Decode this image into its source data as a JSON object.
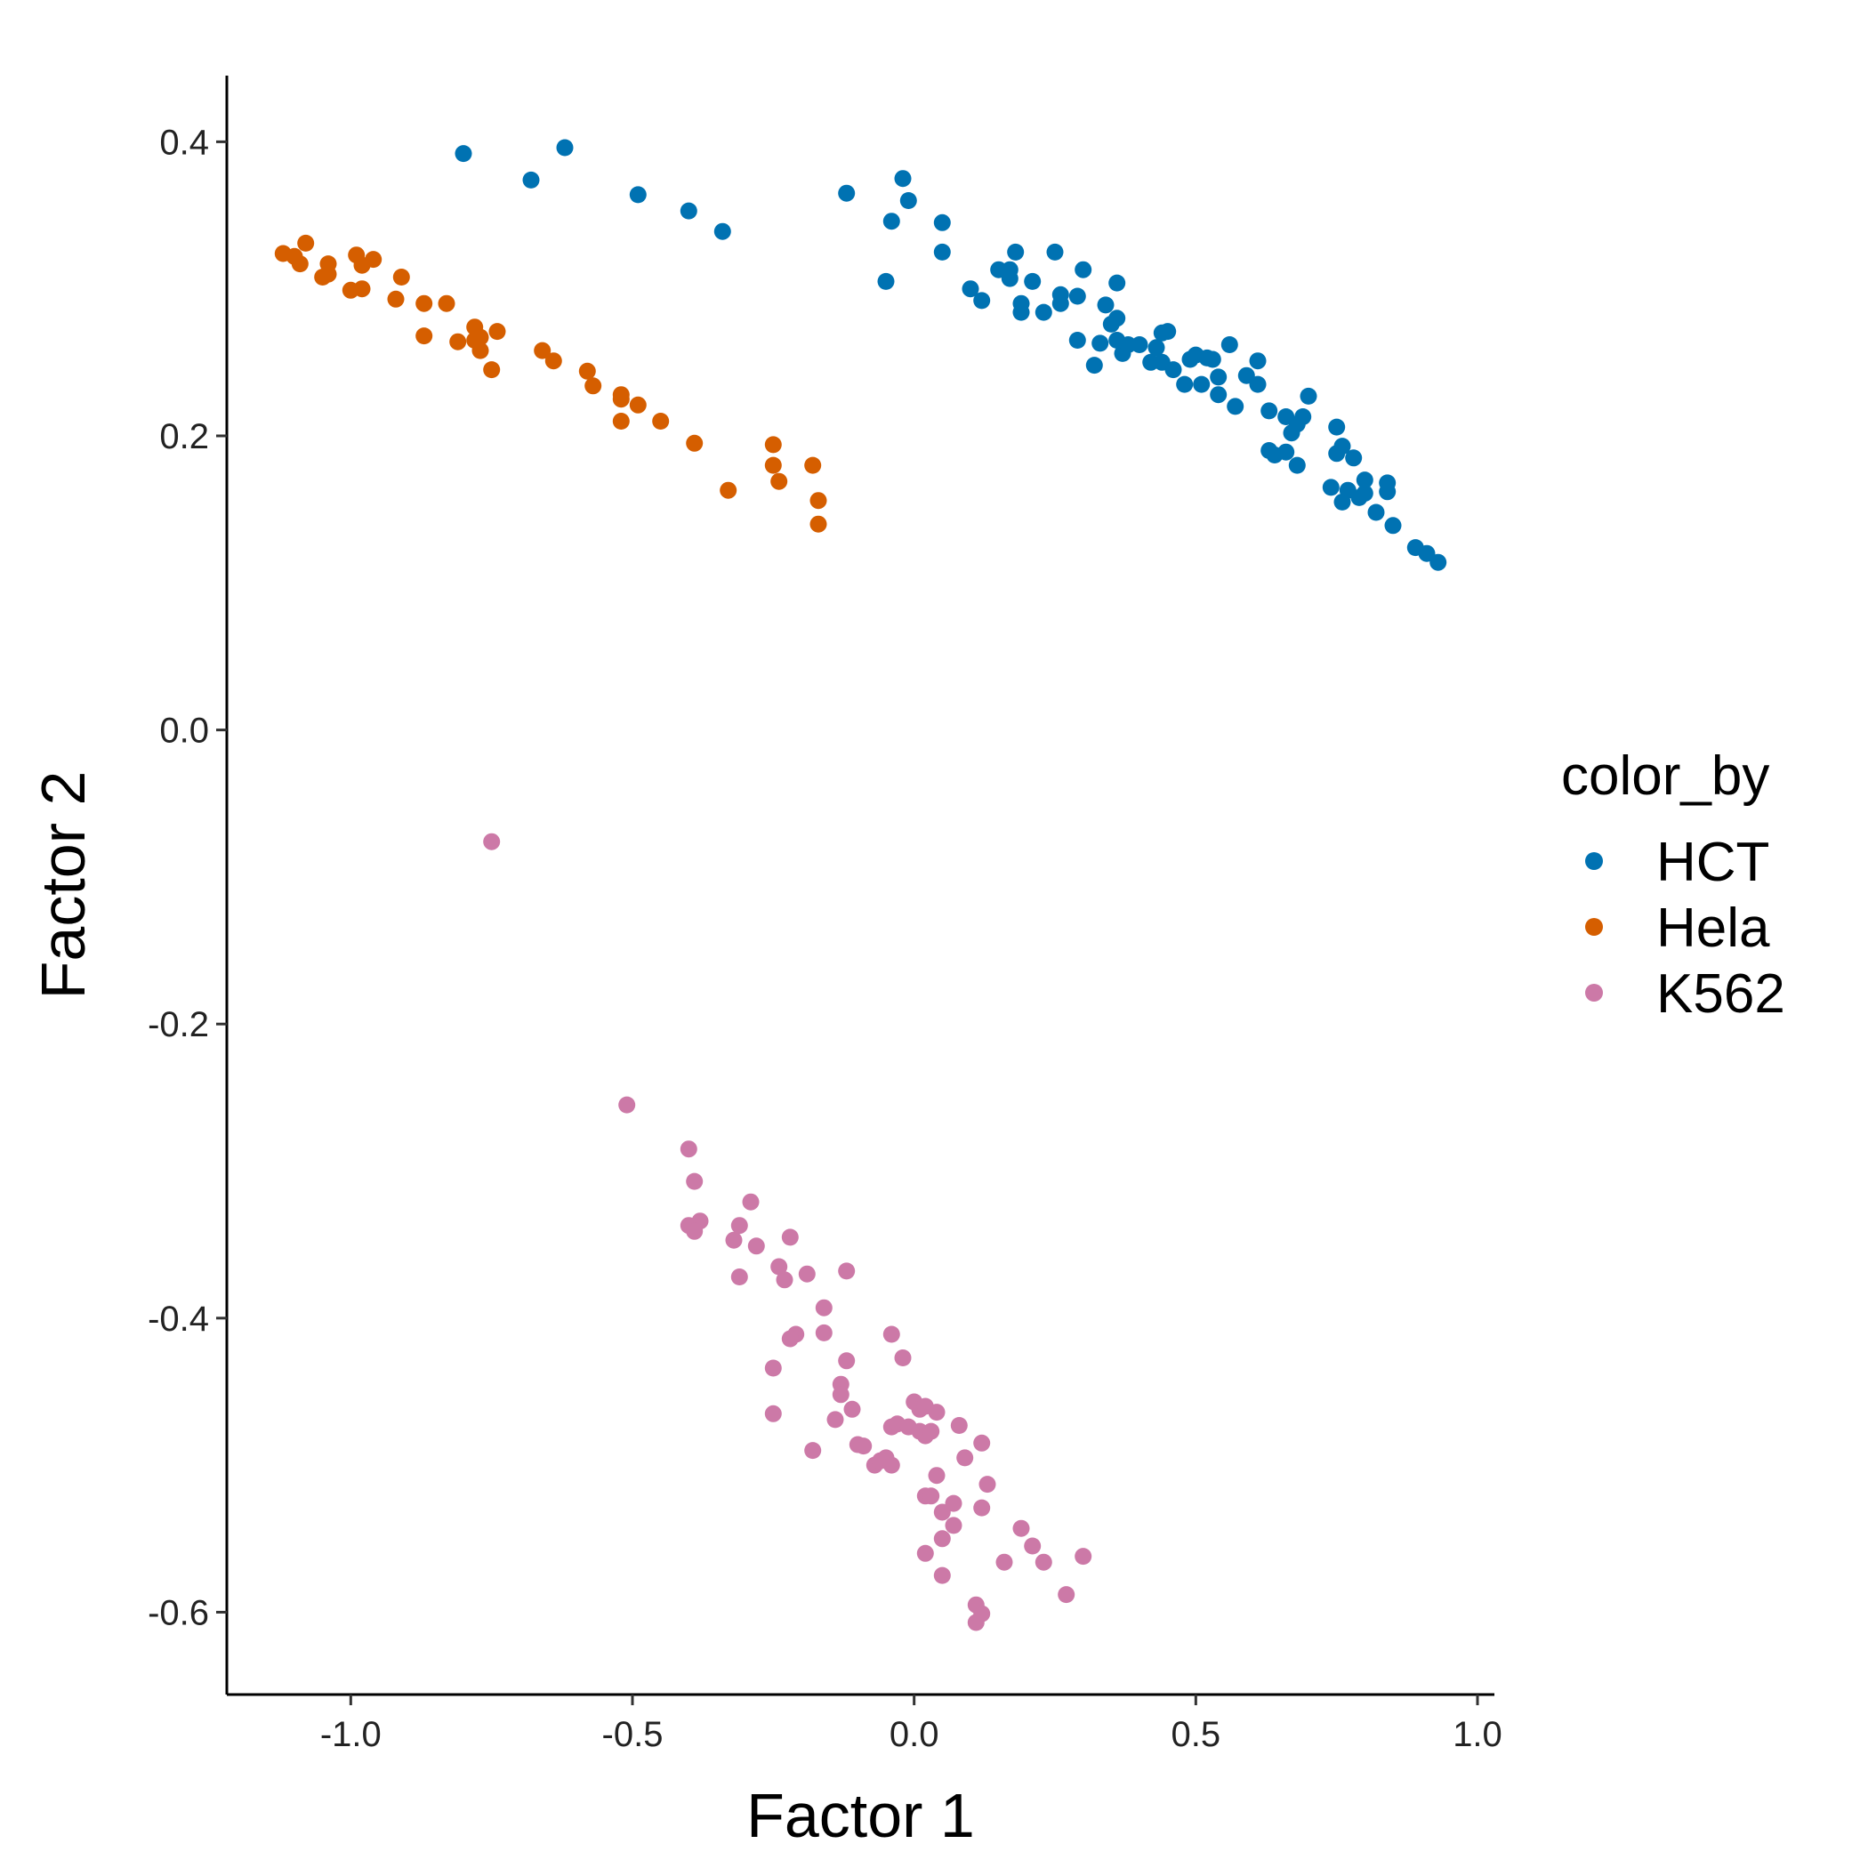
{
  "chart_data": {
    "type": "scatter",
    "xlabel": "Factor 1",
    "ylabel": "Factor 2",
    "xlim": [
      -1.22,
      1.03
    ],
    "ylim": [
      -0.656,
      0.445
    ],
    "x_ticks": [
      -1.0,
      -0.5,
      0.0,
      0.5,
      1.0
    ],
    "x_tick_labels": [
      "-1.0",
      "-0.5",
      "0.0",
      "0.5",
      "1.0"
    ],
    "y_ticks": [
      0.4,
      0.2,
      0.0,
      -0.2,
      -0.4,
      -0.6
    ],
    "y_tick_labels": [
      "0.4",
      "0.2",
      "0.0",
      "-0.2",
      "-0.4",
      "-0.6"
    ],
    "grid": false,
    "legend": {
      "title": "color_by",
      "position": "right"
    },
    "series": [
      {
        "name": "HCT",
        "color": "#0072B2",
        "points": [
          [
            -0.8,
            0.392
          ],
          [
            -0.68,
            0.374
          ],
          [
            -0.62,
            0.396
          ],
          [
            -0.49,
            0.364
          ],
          [
            -0.4,
            0.353
          ],
          [
            -0.34,
            0.339
          ],
          [
            -0.12,
            0.365
          ],
          [
            -0.04,
            0.346
          ],
          [
            -0.05,
            0.305
          ],
          [
            -0.02,
            0.375
          ],
          [
            -0.01,
            0.36
          ],
          [
            0.05,
            0.345
          ],
          [
            0.05,
            0.325
          ],
          [
            0.1,
            0.3
          ],
          [
            0.12,
            0.292
          ],
          [
            0.15,
            0.313
          ],
          [
            0.17,
            0.313
          ],
          [
            0.18,
            0.325
          ],
          [
            0.17,
            0.307
          ],
          [
            0.21,
            0.305
          ],
          [
            0.19,
            0.29
          ],
          [
            0.19,
            0.284
          ],
          [
            0.23,
            0.284
          ],
          [
            0.25,
            0.325
          ],
          [
            0.26,
            0.296
          ],
          [
            0.26,
            0.29
          ],
          [
            0.29,
            0.295
          ],
          [
            0.3,
            0.313
          ],
          [
            0.29,
            0.265
          ],
          [
            0.32,
            0.248
          ],
          [
            0.33,
            0.263
          ],
          [
            0.34,
            0.289
          ],
          [
            0.35,
            0.276
          ],
          [
            0.36,
            0.304
          ],
          [
            0.36,
            0.28
          ],
          [
            0.36,
            0.265
          ],
          [
            0.37,
            0.256
          ],
          [
            0.38,
            0.262
          ],
          [
            0.4,
            0.262
          ],
          [
            0.42,
            0.25
          ],
          [
            0.43,
            0.26
          ],
          [
            0.44,
            0.27
          ],
          [
            0.45,
            0.271
          ],
          [
            0.44,
            0.25
          ],
          [
            0.46,
            0.245
          ],
          [
            0.48,
            0.235
          ],
          [
            0.49,
            0.252
          ],
          [
            0.5,
            0.255
          ],
          [
            0.51,
            0.235
          ],
          [
            0.52,
            0.253
          ],
          [
            0.53,
            0.252
          ],
          [
            0.54,
            0.24
          ],
          [
            0.54,
            0.228
          ],
          [
            0.56,
            0.262
          ],
          [
            0.57,
            0.22
          ],
          [
            0.59,
            0.241
          ],
          [
            0.61,
            0.251
          ],
          [
            0.61,
            0.235
          ],
          [
            0.63,
            0.217
          ],
          [
            0.63,
            0.19
          ],
          [
            0.64,
            0.187
          ],
          [
            0.66,
            0.213
          ],
          [
            0.66,
            0.189
          ],
          [
            0.67,
            0.202
          ],
          [
            0.68,
            0.208
          ],
          [
            0.68,
            0.18
          ],
          [
            0.69,
            0.213
          ],
          [
            0.7,
            0.227
          ],
          [
            0.74,
            0.165
          ],
          [
            0.75,
            0.188
          ],
          [
            0.75,
            0.206
          ],
          [
            0.76,
            0.193
          ],
          [
            0.76,
            0.155
          ],
          [
            0.77,
            0.163
          ],
          [
            0.78,
            0.185
          ],
          [
            0.79,
            0.158
          ],
          [
            0.8,
            0.161
          ],
          [
            0.8,
            0.17
          ],
          [
            0.82,
            0.148
          ],
          [
            0.84,
            0.168
          ],
          [
            0.84,
            0.162
          ],
          [
            0.85,
            0.139
          ],
          [
            0.89,
            0.124
          ],
          [
            0.91,
            0.12
          ],
          [
            0.93,
            0.114
          ]
        ]
      },
      {
        "name": "Hela",
        "color": "#D55E00",
        "points": [
          [
            -1.12,
            0.324
          ],
          [
            -1.1,
            0.322
          ],
          [
            -1.09,
            0.317
          ],
          [
            -1.08,
            0.331
          ],
          [
            -1.05,
            0.308
          ],
          [
            -1.04,
            0.31
          ],
          [
            -1.04,
            0.317
          ],
          [
            -1.0,
            0.299
          ],
          [
            -0.99,
            0.323
          ],
          [
            -0.98,
            0.3
          ],
          [
            -0.98,
            0.316
          ],
          [
            -0.96,
            0.32
          ],
          [
            -0.92,
            0.293
          ],
          [
            -0.91,
            0.308
          ],
          [
            -0.87,
            0.29
          ],
          [
            -0.87,
            0.268
          ],
          [
            -0.83,
            0.29
          ],
          [
            -0.81,
            0.264
          ],
          [
            -0.78,
            0.265
          ],
          [
            -0.78,
            0.274
          ],
          [
            -0.77,
            0.267
          ],
          [
            -0.77,
            0.258
          ],
          [
            -0.75,
            0.245
          ],
          [
            -0.74,
            0.271
          ],
          [
            -0.66,
            0.258
          ],
          [
            -0.64,
            0.251
          ],
          [
            -0.58,
            0.244
          ],
          [
            -0.57,
            0.234
          ],
          [
            -0.52,
            0.228
          ],
          [
            -0.52,
            0.225
          ],
          [
            -0.52,
            0.21
          ],
          [
            -0.49,
            0.221
          ],
          [
            -0.45,
            0.21
          ],
          [
            -0.39,
            0.195
          ],
          [
            -0.33,
            0.163
          ],
          [
            -0.25,
            0.194
          ],
          [
            -0.25,
            0.18
          ],
          [
            -0.24,
            0.169
          ],
          [
            -0.18,
            0.18
          ],
          [
            -0.17,
            0.156
          ],
          [
            -0.17,
            0.14
          ]
        ]
      },
      {
        "name": "K562",
        "color": "#CC79A7",
        "points": [
          [
            -0.75,
            -0.076
          ],
          [
            -0.51,
            -0.255
          ],
          [
            -0.4,
            -0.285
          ],
          [
            -0.39,
            -0.307
          ],
          [
            -0.38,
            -0.334
          ],
          [
            -0.4,
            -0.337
          ],
          [
            -0.39,
            -0.341
          ],
          [
            -0.32,
            -0.347
          ],
          [
            -0.31,
            -0.337
          ],
          [
            -0.29,
            -0.321
          ],
          [
            -0.28,
            -0.351
          ],
          [
            -0.31,
            -0.372
          ],
          [
            -0.22,
            -0.345
          ],
          [
            -0.24,
            -0.365
          ],
          [
            -0.23,
            -0.374
          ],
          [
            -0.19,
            -0.37
          ],
          [
            -0.16,
            -0.393
          ],
          [
            -0.21,
            -0.411
          ],
          [
            -0.22,
            -0.414
          ],
          [
            -0.16,
            -0.41
          ],
          [
            -0.25,
            -0.434
          ],
          [
            -0.25,
            -0.465
          ],
          [
            -0.12,
            -0.368
          ],
          [
            -0.04,
            -0.411
          ],
          [
            -0.12,
            -0.429
          ],
          [
            -0.02,
            -0.427
          ],
          [
            -0.13,
            -0.445
          ],
          [
            -0.13,
            -0.452
          ],
          [
            -0.11,
            -0.462
          ],
          [
            -0.14,
            -0.469
          ],
          [
            -0.18,
            -0.49
          ],
          [
            -0.1,
            -0.486
          ],
          [
            -0.09,
            -0.487
          ],
          [
            -0.07,
            -0.5
          ],
          [
            -0.06,
            -0.497
          ],
          [
            -0.05,
            -0.495
          ],
          [
            -0.04,
            -0.5
          ],
          [
            -0.04,
            -0.474
          ],
          [
            -0.03,
            -0.472
          ],
          [
            -0.01,
            -0.474
          ],
          [
            0.0,
            -0.457
          ],
          [
            0.01,
            -0.462
          ],
          [
            0.01,
            -0.477
          ],
          [
            0.02,
            -0.46
          ],
          [
            0.02,
            -0.48
          ],
          [
            0.03,
            -0.477
          ],
          [
            0.04,
            -0.464
          ],
          [
            0.08,
            -0.473
          ],
          [
            0.04,
            -0.507
          ],
          [
            0.02,
            -0.521
          ],
          [
            0.03,
            -0.521
          ],
          [
            0.05,
            -0.532
          ],
          [
            0.07,
            -0.526
          ],
          [
            0.07,
            -0.541
          ],
          [
            0.05,
            -0.55
          ],
          [
            0.02,
            -0.56
          ],
          [
            0.05,
            -0.575
          ],
          [
            0.09,
            -0.495
          ],
          [
            0.12,
            -0.485
          ],
          [
            0.12,
            -0.529
          ],
          [
            0.13,
            -0.513
          ],
          [
            0.16,
            -0.566
          ],
          [
            0.19,
            -0.543
          ],
          [
            0.21,
            -0.555
          ],
          [
            0.23,
            -0.566
          ],
          [
            0.27,
            -0.588
          ],
          [
            0.3,
            -0.562
          ],
          [
            0.11,
            -0.595
          ],
          [
            0.12,
            -0.601
          ],
          [
            0.11,
            -0.607
          ]
        ]
      }
    ]
  }
}
